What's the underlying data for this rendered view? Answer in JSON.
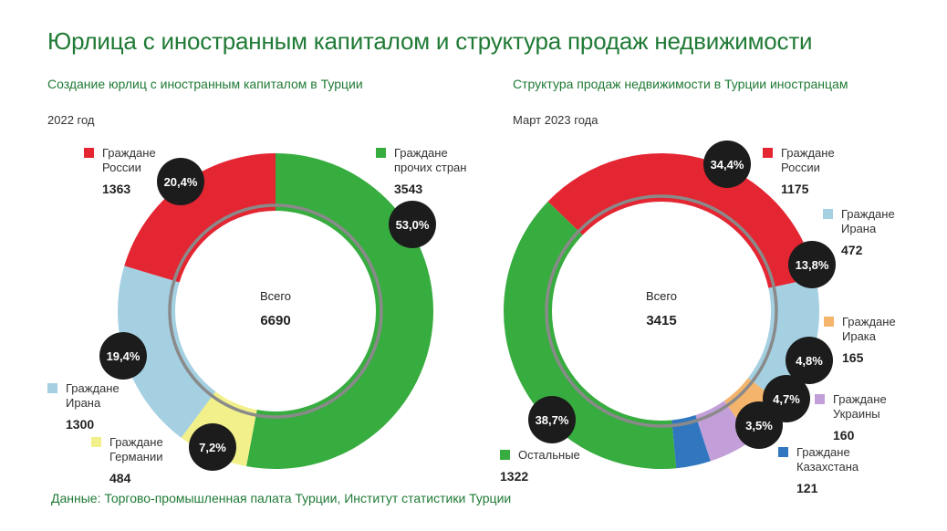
{
  "title": "Юрлица с иностранным капиталом и структура продаж недвижимости",
  "source": "Данные: Торгово-промышленная палата Турции, Институт статистики Турции",
  "colors": {
    "title": "#1f7a35",
    "red": "#e42532",
    "green": "#37ac3f",
    "lightblue": "#a4d0e2",
    "yellow": "#f2f08a",
    "orange": "#f4b46c",
    "purple": "#c29fd8",
    "blue": "#3177c0",
    "badge": "#1c1c1c",
    "ring": "#8a8a8a"
  },
  "chart_data": [
    {
      "type": "pie",
      "title": "Создание юрлиц с иностранным капиталом в Турции",
      "period": "2022 год",
      "center_label": "Всего",
      "total": "6690",
      "slices": [
        {
          "legend": [
            "Граждане",
            "прочих стран"
          ],
          "value": 3543,
          "value_label": "3543",
          "percent": "53,0%",
          "color": "#37ac3f"
        },
        {
          "legend": [
            "Граждане",
            "Германии"
          ],
          "value": 484,
          "value_label": "484",
          "percent": "7,2%",
          "color": "#f2f08a"
        },
        {
          "legend": [
            "Граждане",
            "Ирана"
          ],
          "value": 1300,
          "value_label": "1300",
          "percent": "19,4%",
          "color": "#a4d0e2"
        },
        {
          "legend": [
            "Граждане",
            "России"
          ],
          "value": 1363,
          "value_label": "1363",
          "percent": "20,4%",
          "color": "#e42532"
        }
      ]
    },
    {
      "type": "pie",
      "title": "Структура продаж недвижимости в Турции иностранцам",
      "period": "Март 2023 года",
      "center_label": "Всего",
      "total": "3415",
      "slices": [
        {
          "legend": [
            "Граждане",
            "России"
          ],
          "value": 1175,
          "value_label": "1175",
          "percent": "34,4%",
          "color": "#e42532"
        },
        {
          "legend": [
            "Граждане",
            "Ирана"
          ],
          "value": 472,
          "value_label": "472",
          "percent": "13,8%",
          "color": "#a4d0e2"
        },
        {
          "legend": [
            "Граждане",
            "Ирака"
          ],
          "value": 165,
          "value_label": "165",
          "percent": "4,8%",
          "color": "#f4b46c"
        },
        {
          "legend": [
            "Граждане",
            "Украины"
          ],
          "value": 160,
          "value_label": "160",
          "percent": "4,7%",
          "color": "#c29fd8"
        },
        {
          "legend": [
            "Граждане",
            "Казахстана"
          ],
          "value": 121,
          "value_label": "121",
          "percent": "3,5%",
          "color": "#3177c0"
        },
        {
          "legend": [
            "Остальные"
          ],
          "value": 1322,
          "value_label": "1322",
          "percent": "38,7%",
          "color": "#37ac3f"
        }
      ]
    }
  ]
}
